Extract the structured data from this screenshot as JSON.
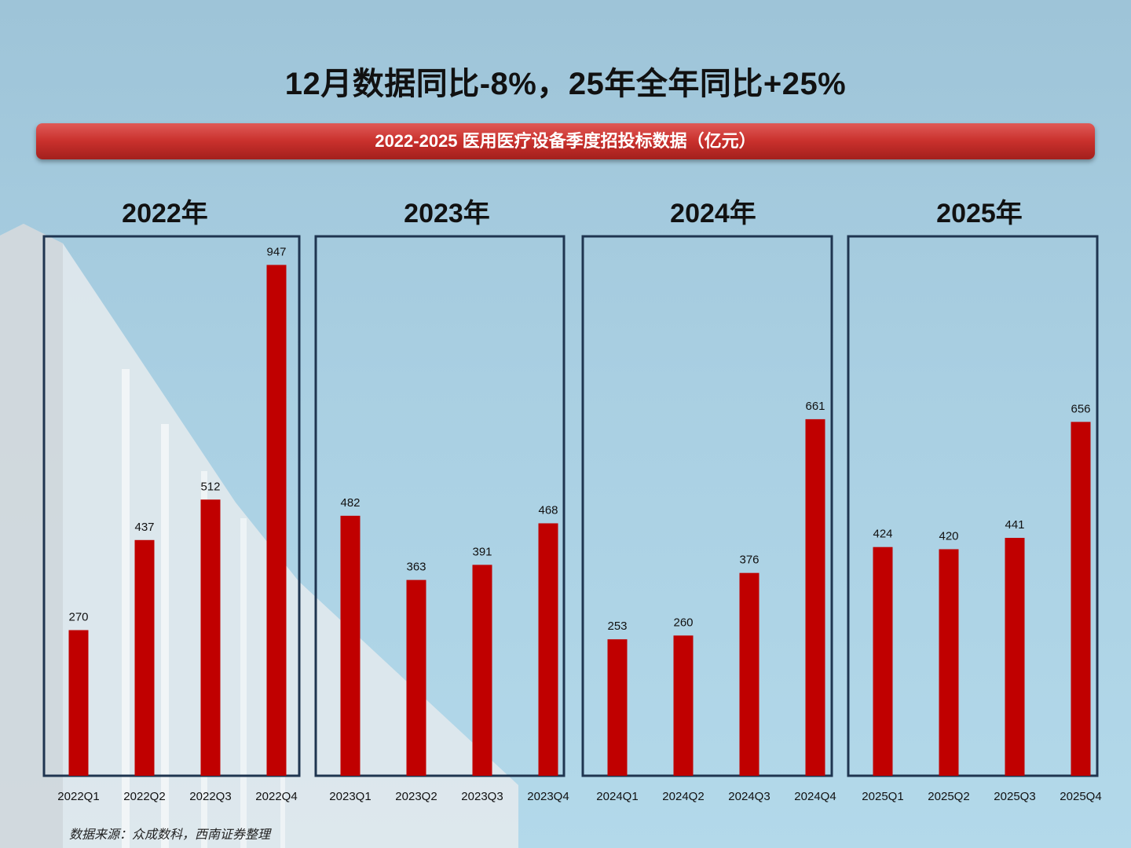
{
  "headline": "12月数据同比-8%，25年全年同比+25%",
  "banner": "2022-2025 医用医疗设备季度招投标数据（亿元）",
  "source": "数据来源：众成数科，西南证券整理",
  "colors": {
    "bar": "#c00000",
    "banner": "#c9302c",
    "frame": "#1f3550"
  },
  "chart_data": {
    "type": "bar",
    "groups": [
      {
        "label": "2022年",
        "categories": [
          "2022Q1",
          "2022Q2",
          "2022Q3",
          "2022Q4"
        ],
        "values": [
          270,
          437,
          512,
          947
        ]
      },
      {
        "label": "2023年",
        "categories": [
          "2023Q1",
          "2023Q2",
          "2023Q3",
          "2023Q4"
        ],
        "values": [
          482,
          363,
          391,
          468
        ]
      },
      {
        "label": "2024年",
        "categories": [
          "2024Q1",
          "2024Q2",
          "2024Q3",
          "2024Q4"
        ],
        "values": [
          253,
          260,
          376,
          661
        ]
      },
      {
        "label": "2025年",
        "categories": [
          "2025Q1",
          "2025Q2",
          "2025Q3",
          "2025Q4"
        ],
        "values": [
          424,
          420,
          441,
          656
        ]
      }
    ],
    "ylim": [
      0,
      1000
    ],
    "grid": false,
    "data_labels": true
  }
}
